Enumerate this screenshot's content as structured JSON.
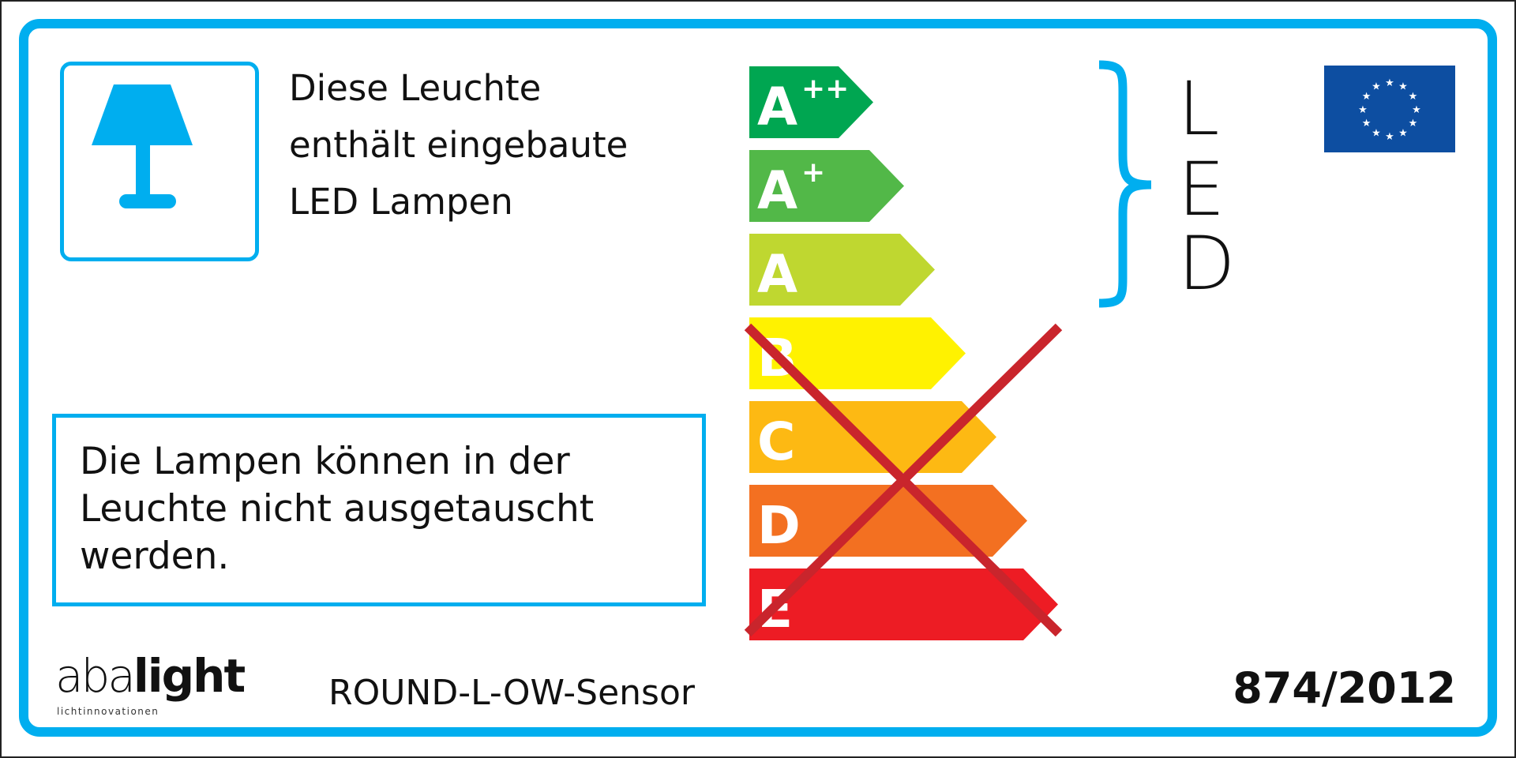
{
  "header": {
    "description_lines": [
      "Diese Leuchte",
      "enthält eingebaute",
      "LED Lampen"
    ]
  },
  "notice": {
    "lines": [
      "Die Lampen können in der",
      "Leuchte nicht ausgetauscht",
      "werden."
    ]
  },
  "energy_classes": [
    {
      "letter": "A",
      "sup": "++",
      "color": "#00a651"
    },
    {
      "letter": "A",
      "sup": "+",
      "color": "#52b848"
    },
    {
      "letter": "A",
      "sup": "",
      "color": "#bfd730"
    },
    {
      "letter": "B",
      "sup": "",
      "color": "#fff200"
    },
    {
      "letter": "C",
      "sup": "",
      "color": "#fdb913"
    },
    {
      "letter": "D",
      "sup": "",
      "color": "#f37021"
    },
    {
      "letter": "E",
      "sup": "",
      "color": "#ed1c24"
    }
  ],
  "crossed_out_classes": [
    "B",
    "C",
    "D",
    "E"
  ],
  "cross_color": "#c9252c",
  "lamp_type": [
    "L",
    "E",
    "D"
  ],
  "icons": {
    "lamp": "table-lamp-icon",
    "eu_flag": "eu-flag-icon"
  },
  "accent_color": "#00aeef",
  "brand": {
    "name_light": "aba",
    "name_bold": "light",
    "tagline": "lichtinnovationen"
  },
  "model": "ROUND-L-OW-Sensor",
  "regulation": "874/2012"
}
